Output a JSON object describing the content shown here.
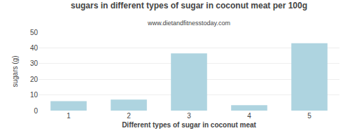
{
  "chart_data": {
    "type": "bar",
    "title": "sugars in different types of sugar in coconut meat per 100g",
    "subtitle": "www.dietandfitnesstoday.com",
    "xlabel": "Different types of sugar in coconut meat",
    "ylabel": "sugars (g)",
    "categories": [
      1,
      2,
      3,
      4,
      5
    ],
    "values": [
      6.0,
      7.0,
      36.5,
      3.5,
      43.0
    ],
    "color": "#aed4e0",
    "ylim": [
      0,
      50
    ],
    "yticks": [
      0,
      10,
      20,
      30,
      40,
      50
    ],
    "grid": true
  }
}
